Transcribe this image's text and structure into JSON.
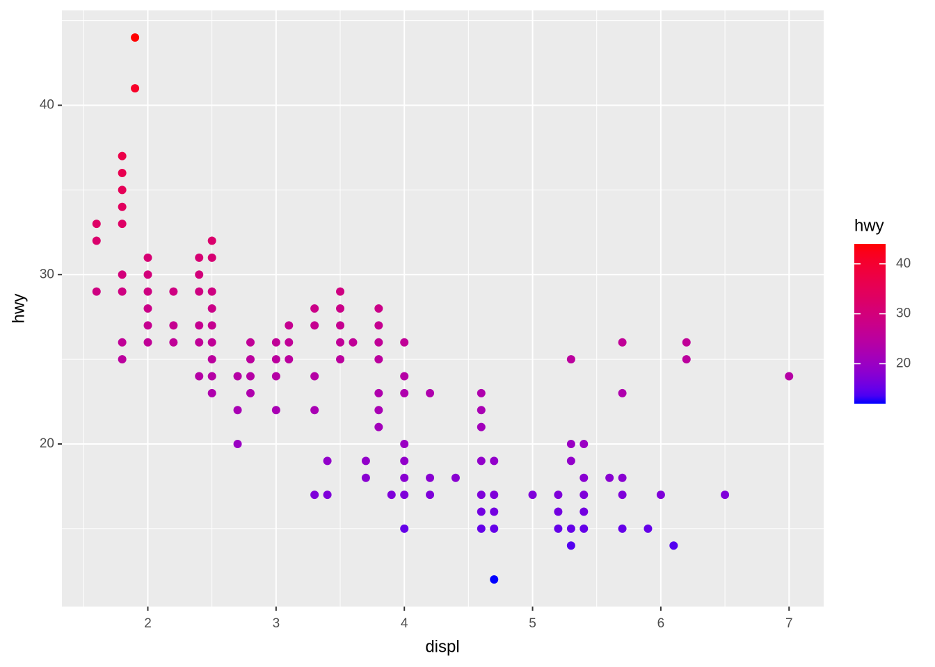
{
  "chart_data": {
    "type": "scatter",
    "x_label": "displ",
    "y_label": "hwy",
    "xlim": [
      1.33,
      7.27
    ],
    "ylim": [
      10.4,
      45.6
    ],
    "xticks": [
      2,
      3,
      4,
      5,
      6,
      7
    ],
    "yticks": [
      20,
      30,
      40
    ],
    "x_minor_ticks": [
      1.5,
      2.5,
      3.5,
      4.5,
      5.5,
      6.5
    ],
    "y_minor_ticks": [
      15,
      25,
      35,
      45
    ],
    "grid": true,
    "legend": {
      "title": "hwy",
      "position": "right",
      "low_color": "#0000ff",
      "high_color": "#ff0000",
      "limits": [
        12,
        44
      ],
      "ticks": [
        20,
        30,
        40
      ]
    },
    "series": [
      {
        "name": "hwy",
        "x": [
          1.6,
          1.6,
          1.6,
          1.8,
          1.8,
          1.8,
          1.8,
          1.8,
          1.8,
          1.8,
          1.8,
          1.8,
          1.9,
          1.9,
          2.0,
          2.0,
          2.0,
          2.0,
          2.0,
          2.0,
          2.2,
          2.2,
          2.2,
          2.4,
          2.4,
          2.4,
          2.4,
          2.4,
          2.4,
          2.5,
          2.5,
          2.5,
          2.5,
          2.5,
          2.5,
          2.5,
          2.5,
          2.5,
          2.7,
          2.7,
          2.7,
          2.8,
          2.8,
          2.8,
          2.8,
          3.0,
          3.0,
          3.0,
          3.0,
          3.1,
          3.1,
          3.1,
          3.3,
          3.3,
          3.3,
          3.3,
          3.3,
          3.4,
          3.4,
          3.5,
          3.5,
          3.5,
          3.5,
          3.5,
          3.6,
          3.7,
          3.7,
          3.8,
          3.8,
          3.8,
          3.8,
          3.8,
          3.8,
          3.8,
          3.9,
          4.0,
          4.0,
          4.0,
          4.0,
          4.0,
          4.0,
          4.0,
          4.0,
          4.2,
          4.2,
          4.2,
          4.4,
          4.6,
          4.6,
          4.6,
          4.6,
          4.6,
          4.6,
          4.6,
          4.7,
          4.7,
          4.7,
          4.7,
          4.7,
          5.0,
          5.2,
          5.2,
          5.2,
          5.3,
          5.3,
          5.3,
          5.3,
          5.3,
          5.4,
          5.4,
          5.4,
          5.4,
          5.4,
          5.6,
          5.7,
          5.7,
          5.7,
          5.7,
          5.7,
          5.9,
          6.0,
          6.1,
          6.2,
          6.2,
          6.5,
          7.0
        ],
        "y": [
          33,
          32,
          29,
          37,
          36,
          35,
          34,
          33,
          30,
          29,
          26,
          25,
          44,
          41,
          31,
          30,
          29,
          28,
          27,
          26,
          29,
          27,
          26,
          31,
          30,
          29,
          27,
          26,
          24,
          32,
          31,
          29,
          28,
          27,
          26,
          25,
          24,
          23,
          24,
          22,
          20,
          26,
          25,
          24,
          23,
          26,
          25,
          24,
          22,
          27,
          26,
          25,
          28,
          27,
          24,
          22,
          17,
          19,
          17,
          29,
          28,
          27,
          26,
          25,
          26,
          19,
          18,
          28,
          27,
          26,
          25,
          23,
          22,
          21,
          17,
          26,
          24,
          23,
          20,
          19,
          18,
          17,
          15,
          23,
          18,
          17,
          18,
          23,
          22,
          21,
          19,
          17,
          16,
          15,
          19,
          17,
          16,
          15,
          12,
          17,
          17,
          16,
          15,
          25,
          20,
          19,
          15,
          14,
          20,
          18,
          17,
          16,
          15,
          18,
          26,
          23,
          18,
          17,
          15,
          15,
          17,
          14,
          26,
          25,
          17,
          24
        ]
      }
    ]
  }
}
